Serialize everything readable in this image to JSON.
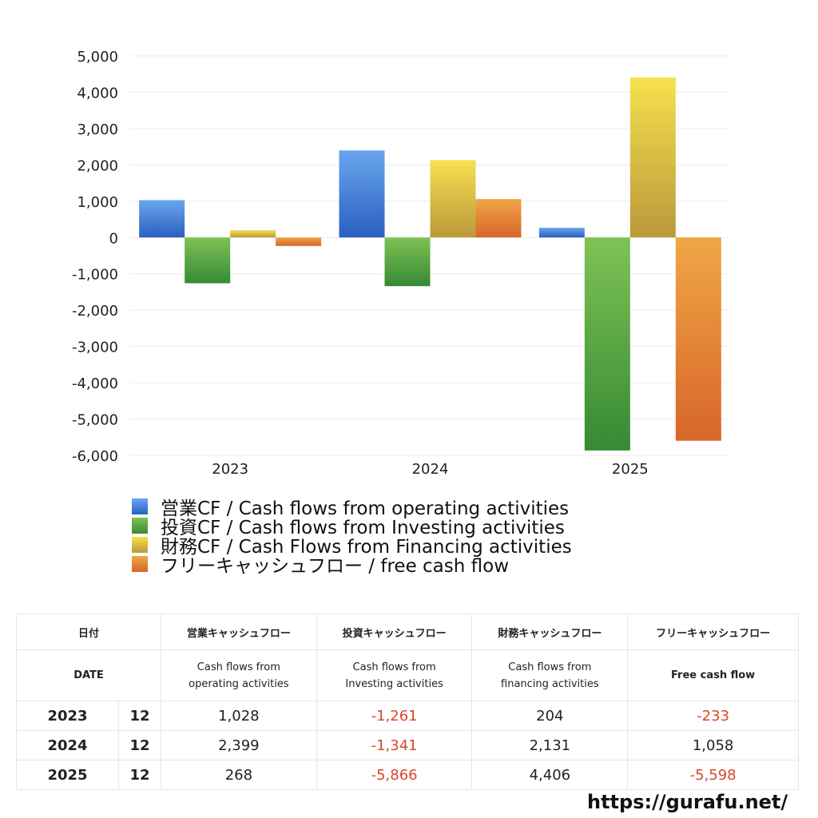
{
  "chart_data": {
    "type": "bar",
    "categories": [
      "2023",
      "2024",
      "2025"
    ],
    "series": [
      {
        "name": "営業CF / Cash flows from operating activities",
        "values": [
          1028,
          2399,
          268
        ],
        "color_top": "#6aa6ee",
        "color_bottom": "#2a5fc0"
      },
      {
        "name": "投資CF / Cash flows from Investing activities",
        "values": [
          -1261,
          -1341,
          -5866
        ],
        "color_top": "#7fc255",
        "color_bottom": "#358a34"
      },
      {
        "name": "財務CF / Cash Flows from Financing activities",
        "values": [
          204,
          2131,
          4406
        ],
        "color_top": "#f7e04f",
        "color_bottom": "#b9993a"
      },
      {
        "name": "フリーキャッシュフロー / free cash flow",
        "values": [
          -233,
          1058,
          -5598
        ],
        "color_top": "#f0a646",
        "color_bottom": "#d8662a"
      }
    ],
    "yticks": [
      "5,000",
      "4,000",
      "3,000",
      "2,000",
      "1,000",
      "0",
      "-1,000",
      "-2,000",
      "-3,000",
      "-4,000",
      "-5,000",
      "-6,000"
    ],
    "ylim": [
      -6000,
      5000
    ],
    "grid": true,
    "legend_position": "bottom-left"
  },
  "table": {
    "header_jp": {
      "date": "日付",
      "operating": "営業キャッシュフロー",
      "investing": "投資キャッシュフロー",
      "financing": "財務キャッシュフロー",
      "free": "フリーキャッシュフロー"
    },
    "header_en": {
      "date": "DATE",
      "operating_1": "Cash flows from",
      "operating_2": "operating activities",
      "investing_1": "Cash flows from",
      "investing_2": "Investing activities",
      "financing_1": "Cash flows from",
      "financing_2": "financing activities",
      "free": "Free cash flow"
    },
    "rows": [
      {
        "year": "2023",
        "month": "12",
        "operating": "1,028",
        "investing": "-1,261",
        "financing": "204",
        "free": "-233"
      },
      {
        "year": "2024",
        "month": "12",
        "operating": "2,399",
        "investing": "-1,341",
        "financing": "2,131",
        "free": "1,058"
      },
      {
        "year": "2025",
        "month": "12",
        "operating": "268",
        "investing": "-5,866",
        "financing": "4,406",
        "free": "-5,598"
      }
    ],
    "negative_color": "#d8482b"
  },
  "site": "https://gurafu.net/"
}
